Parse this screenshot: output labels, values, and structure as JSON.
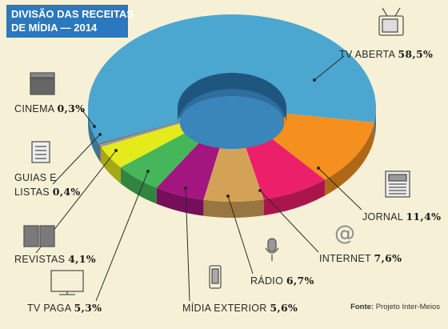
{
  "title": [
    "DIVISÃO DAS RECEITAS",
    "DE MÍDIA — 2014"
  ],
  "source": {
    "label": "Fonte:",
    "text": "Projeto Inter-Meios"
  },
  "chart_data": {
    "type": "pie",
    "variant": "3d-donut",
    "title": "DIVISÃO DAS RECEITAS DE MÍDIA — 2014",
    "unit": "%",
    "slices": [
      {
        "name": "TV ABERTA",
        "value": 58.5,
        "label": "58,5%",
        "color": "#4ba6d0",
        "icon": "tv-icon"
      },
      {
        "name": "JORNAL",
        "value": 11.4,
        "label": "11,4%",
        "color": "#f5901e",
        "icon": "newspaper-icon"
      },
      {
        "name": "INTERNET",
        "value": 7.6,
        "label": "7,6%",
        "color": "#ec1f6a",
        "icon": "at-sign-icon"
      },
      {
        "name": "RÁDIO",
        "value": 6.7,
        "label": "6,7%",
        "color": "#d4a257",
        "icon": "microphone-icon"
      },
      {
        "name": "MÍDIA EXTERIOR",
        "value": 5.6,
        "label": "5,6%",
        "color": "#a3157f",
        "icon": "billboard-icon"
      },
      {
        "name": "TV PAGA",
        "value": 5.3,
        "label": "5,3%",
        "color": "#45b75a",
        "icon": "flat-tv-icon"
      },
      {
        "name": "REVISTAS",
        "value": 4.1,
        "label": "4,1%",
        "color": "#e5ea1b",
        "icon": "open-book-icon"
      },
      {
        "name": "GUIAS E LISTAS",
        "value": 0.4,
        "label": "0,4%",
        "color": "#9a9a9a",
        "icon": "notepad-icon"
      },
      {
        "name": "CINEMA",
        "value": 0.3,
        "label": "0,3%",
        "color": "#777777",
        "icon": "clapperboard-icon"
      }
    ]
  }
}
